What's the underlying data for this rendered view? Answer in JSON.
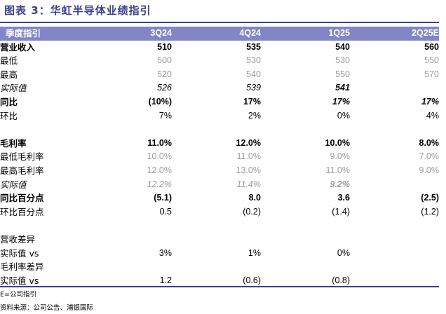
{
  "title": "图表 3：华虹半导体业绩指引",
  "header": [
    "季度指引",
    "3Q24",
    "4Q24",
    "1Q25",
    "2Q25E"
  ],
  "rows": [
    {
      "label": "营业收入",
      "values": [
        "510",
        "535",
        "540",
        "560"
      ]
    },
    {
      "label": "最低",
      "values": [
        "500",
        "530",
        "530",
        "550"
      ]
    },
    {
      "label": "最高",
      "values": [
        "520",
        "540",
        "550",
        "570"
      ]
    },
    {
      "label": "实际值",
      "values": [
        "526",
        "539",
        "541",
        ""
      ]
    },
    {
      "label": "同比",
      "values": [
        "(10%)",
        "17%",
        "17%",
        "17%"
      ]
    },
    {
      "label": "环比",
      "values": [
        "7%",
        "2%",
        "0%",
        "4%"
      ]
    },
    {
      "label": "",
      "values": [
        "",
        "",
        "",
        ""
      ]
    },
    {
      "label": "毛利率",
      "values": [
        "11.0%",
        "12.0%",
        "10.0%",
        "8.0%"
      ]
    },
    {
      "label": "最低毛利率",
      "values": [
        "10.0%",
        "11.0%",
        "9.0%",
        "7.0%"
      ]
    },
    {
      "label": "最高毛利率",
      "values": [
        "12.0%",
        "13.0%",
        "11.0%",
        "9.0%"
      ]
    },
    {
      "label": "实际值",
      "values": [
        "12.2%",
        "11.4%",
        "9.2%",
        ""
      ]
    },
    {
      "label": "同比百分点",
      "values": [
        "(5.1)",
        "8.0",
        "3.6",
        "(2.5)"
      ]
    },
    {
      "label": "环比百分点",
      "values": [
        "0.5",
        "(0.2)",
        "(1.4)",
        "(1.2)"
      ]
    },
    {
      "label": "",
      "values": [
        "",
        "",
        "",
        ""
      ]
    },
    {
      "label": "营收差异",
      "values": [
        "",
        "",
        "",
        ""
      ]
    },
    {
      "label": "实际值 vs",
      "values": [
        "3%",
        "1%",
        "0%",
        ""
      ]
    },
    {
      "label": "毛利率差异",
      "values": [
        "",
        "",
        "",
        ""
      ]
    },
    {
      "label": "实际值 vs",
      "values": [
        "1.2",
        "(0.6)",
        "(0.8)",
        ""
      ]
    }
  ],
  "note": "E=公司指引",
  "source": "资料来源：公司公告、浦银国际"
}
